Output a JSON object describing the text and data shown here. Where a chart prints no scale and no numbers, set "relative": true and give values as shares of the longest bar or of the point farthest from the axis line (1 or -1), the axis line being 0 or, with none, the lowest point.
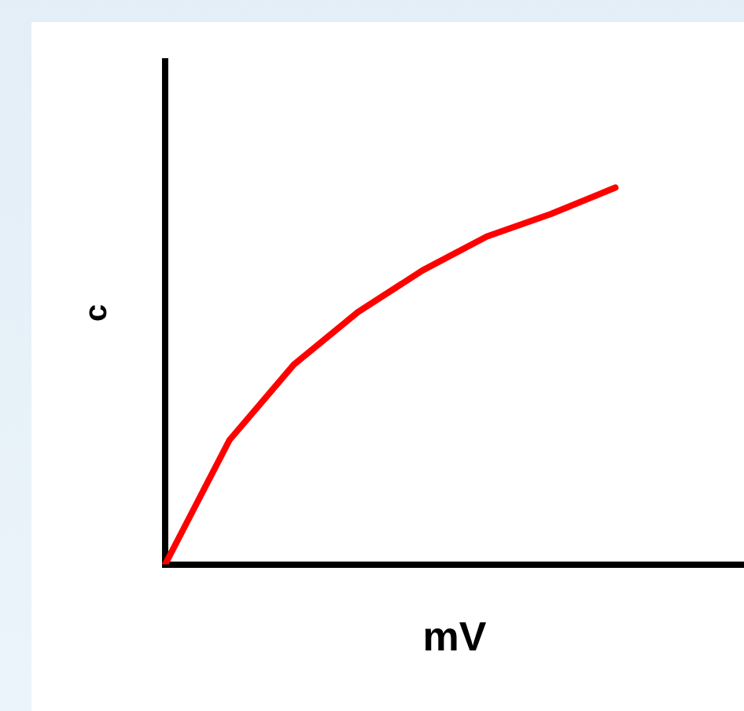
{
  "chart_data": {
    "type": "line",
    "xlabel": "mV",
    "ylabel": "c",
    "relative": true,
    "categories": [
      null,
      null,
      null,
      null,
      null,
      null,
      null,
      null,
      null,
      null
    ],
    "values": [
      0,
      0.33,
      0.53,
      0.67,
      0.78,
      0.87,
      0.93,
      1,
      null,
      null
    ],
    "color": "#ff0000",
    "legend": false,
    "grid": false,
    "tick_labels": false
  }
}
